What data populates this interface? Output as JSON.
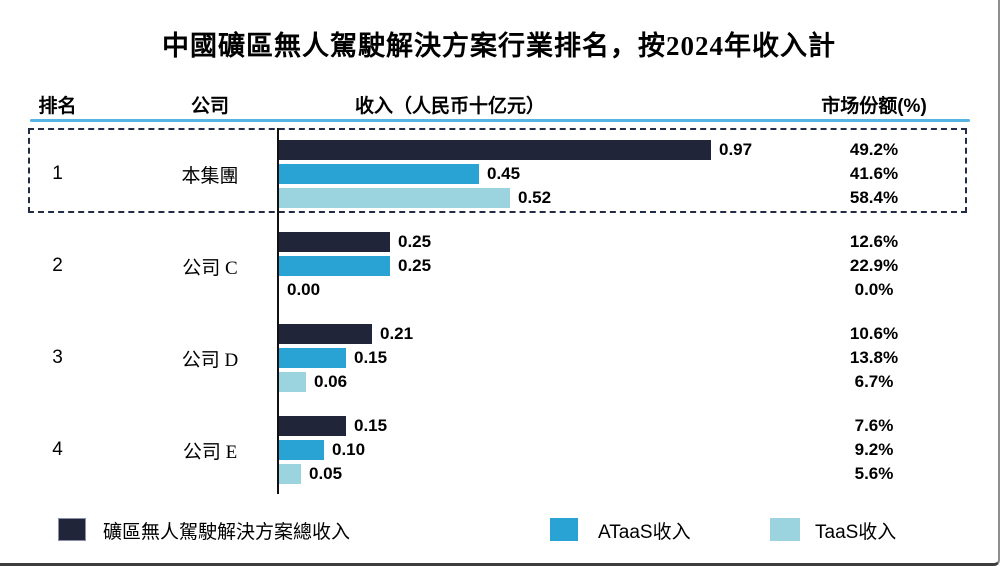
{
  "title": "中國礦區無人駕駛解決方案行業排名，按2024年收入計",
  "columns": {
    "rank": "排名",
    "company": "公司",
    "revenue": "收入（人民币十亿元）",
    "share": "市场份额(%)"
  },
  "colors": {
    "total": "#212539",
    "ataas": "#29a3d4",
    "taas": "#9bd3de",
    "header_rule": "#56b4e2",
    "highlight_border": "#222c44"
  },
  "rows": [
    {
      "rank": "1",
      "company": "本集團",
      "highlighted": true,
      "bars": [
        {
          "series": "total",
          "value": "0.97",
          "share": "49.2%"
        },
        {
          "series": "ataas",
          "value": "0.45",
          "share": "41.6%"
        },
        {
          "series": "taas",
          "value": "0.52",
          "share": "58.4%"
        }
      ]
    },
    {
      "rank": "2",
      "company": "公司 C",
      "highlighted": false,
      "bars": [
        {
          "series": "total",
          "value": "0.25",
          "share": "12.6%"
        },
        {
          "series": "ataas",
          "value": "0.25",
          "share": "22.9%"
        },
        {
          "series": "taas",
          "value": "0.00",
          "share": "0.0%"
        }
      ]
    },
    {
      "rank": "3",
      "company": "公司 D",
      "highlighted": false,
      "bars": [
        {
          "series": "total",
          "value": "0.21",
          "share": "10.6%"
        },
        {
          "series": "ataas",
          "value": "0.15",
          "share": "13.8%"
        },
        {
          "series": "taas",
          "value": "0.06",
          "share": "6.7%"
        }
      ]
    },
    {
      "rank": "4",
      "company": "公司 E",
      "highlighted": false,
      "bars": [
        {
          "series": "total",
          "value": "0.15",
          "share": "7.6%"
        },
        {
          "series": "ataas",
          "value": "0.10",
          "share": "9.2%"
        },
        {
          "series": "taas",
          "value": "0.05",
          "share": "5.6%"
        }
      ]
    }
  ],
  "legend": [
    {
      "series": "total",
      "label": "礦區無人駕駛解決方案總收入"
    },
    {
      "series": "ataas",
      "label": "ATaaS收入"
    },
    {
      "series": "taas",
      "label": "TaaS收入"
    }
  ],
  "chart_data": {
    "type": "bar",
    "orientation": "horizontal",
    "title": "中國礦區無人駕駛解決方案行業排名，按2024年收入計",
    "categories": [
      "本集團",
      "公司 C",
      "公司 D",
      "公司 E"
    ],
    "ranks": [
      1,
      2,
      3,
      4
    ],
    "series": [
      {
        "name": "礦區無人駕駛解決方案總收入",
        "color": "#212539",
        "values": [
          0.97,
          0.25,
          0.21,
          0.15
        ],
        "market_share_pct": [
          49.2,
          12.6,
          10.6,
          7.6
        ]
      },
      {
        "name": "ATaaS收入",
        "color": "#29a3d4",
        "values": [
          0.45,
          0.25,
          0.15,
          0.1
        ],
        "market_share_pct": [
          41.6,
          22.9,
          13.8,
          9.2
        ]
      },
      {
        "name": "TaaS收入",
        "color": "#9bd3de",
        "values": [
          0.52,
          0.0,
          0.06,
          0.05
        ],
        "market_share_pct": [
          58.4,
          0.0,
          6.7,
          5.6
        ]
      }
    ],
    "value_axis_label": "收入（人民币十亿元）",
    "share_axis_label": "市场份额(%)",
    "xlim": [
      0,
      1.0
    ],
    "grid": false,
    "legend_position": "bottom"
  }
}
